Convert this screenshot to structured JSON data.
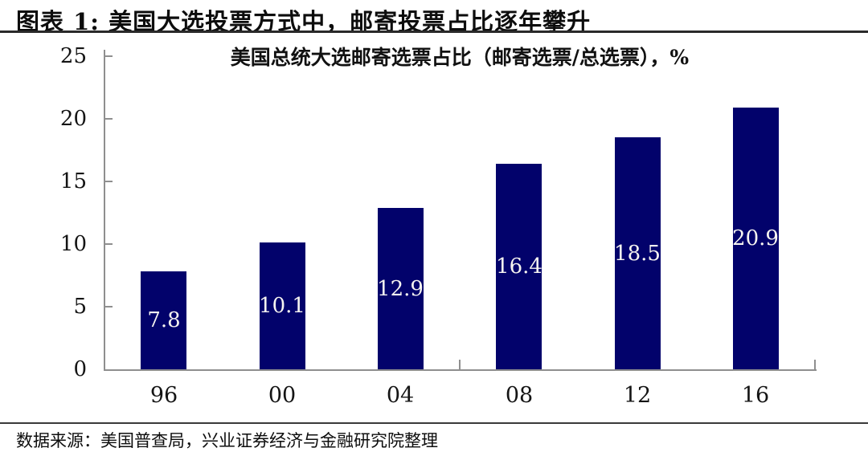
{
  "page": {
    "header": {
      "title": "图表 1: 美国大选投票方式中，邮寄投票占比逐年攀升"
    },
    "footer": {
      "source": "数据来源：美国普查局，兴业证券经济与金融研究院整理"
    }
  },
  "chart_data": {
    "type": "bar",
    "title": "美国总统大选邮寄选票占比（邮寄选票/总选票），%",
    "categories": [
      "96",
      "00",
      "04",
      "08",
      "12",
      "16"
    ],
    "values": [
      7.8,
      10.1,
      12.9,
      16.4,
      18.5,
      20.9
    ],
    "bar_labels": [
      "7.8",
      "10.1",
      "12.9",
      "16.4",
      "18.5",
      "20.9"
    ],
    "xlabel": "",
    "ylabel": "",
    "ylim": [
      0,
      25
    ],
    "y_ticks": [
      0,
      5,
      10,
      15,
      20,
      25
    ],
    "grid": false,
    "legend": "none",
    "x_boundary_tick_indices": [
      3,
      6
    ],
    "colors": {
      "bar": "#02026b",
      "bar_label": "#f6f4f0",
      "axis": "#8f8f8f",
      "text": "#141414"
    }
  }
}
